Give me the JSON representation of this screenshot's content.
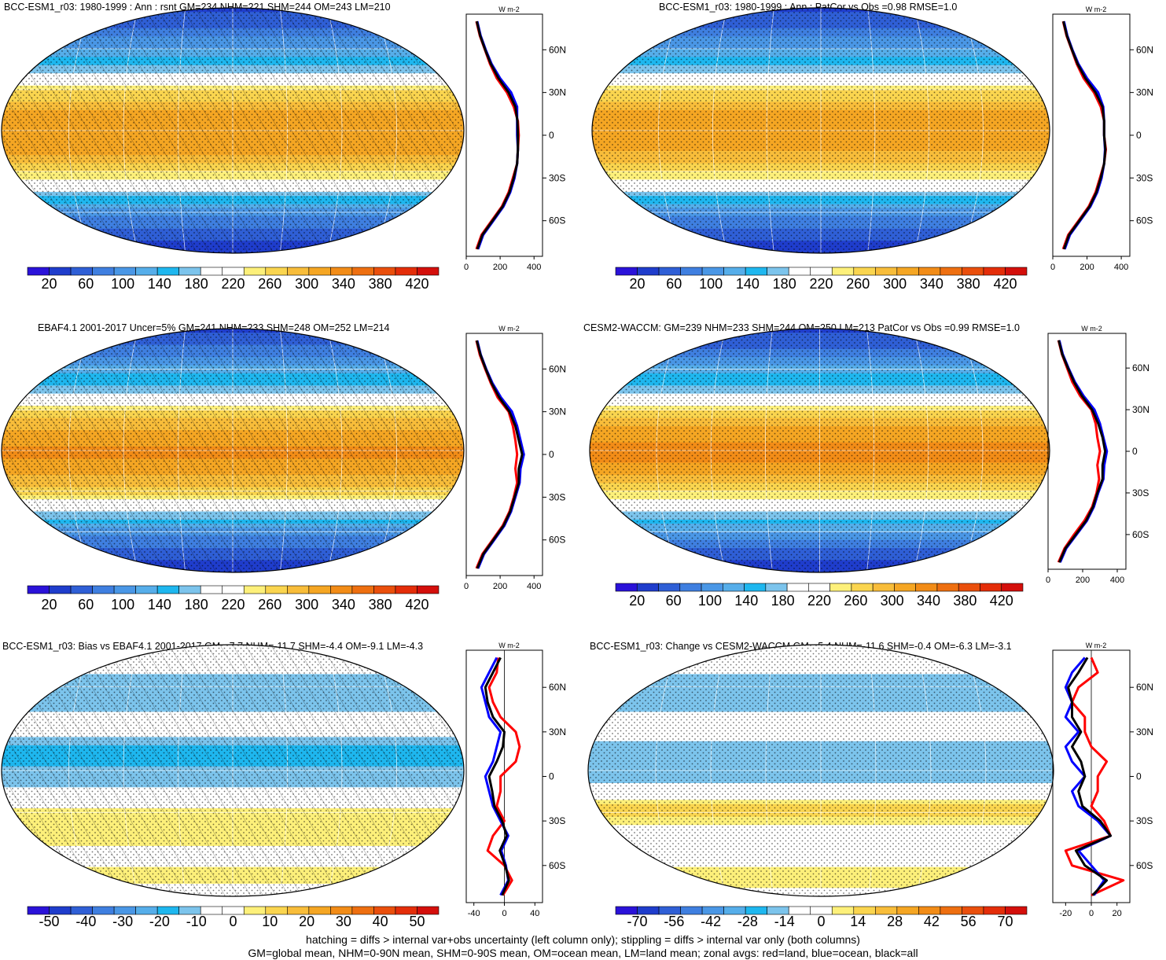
{
  "footer": {
    "line1": "hatching = diffs > internal var+obs uncertainty (left column only); stippling = diffs > internal var only (both columns)",
    "line2": "GM=global mean, NHM=0-90N mean, SHM=0-90S mean, OM=ocean mean, LM=land mean; zonal avgs: red=land, blue=ocean, black=all"
  },
  "palettes": {
    "absolute": [
      "#2a12d9",
      "#1f3dcc",
      "#2f5fd6",
      "#3f7fe0",
      "#4a97e6",
      "#56aeea",
      "#1eb7ef",
      "#7cc4ec",
      "#ffffff",
      "#ffffff",
      "#fdf07a",
      "#fad54f",
      "#f8bd3a",
      "#f5a623",
      "#f28c17",
      "#ee6f10",
      "#ea4f0c",
      "#e42d09",
      "#d40f0b"
    ],
    "difference": [
      "#2a12d9",
      "#1f3dcc",
      "#2f5fd6",
      "#3f7fe0",
      "#4a97e6",
      "#56aeea",
      "#1eb7ef",
      "#7cc4ec",
      "#ffffff",
      "#ffffff",
      "#fdf07a",
      "#fad54f",
      "#f8bd3a",
      "#f5a623",
      "#f28c17",
      "#ee6f10",
      "#ea4f0c",
      "#e42d09",
      "#d40f0b"
    ],
    "zonal_colors": {
      "land": "#ff0000",
      "ocean": "#0000ff",
      "all": "#000000"
    }
  },
  "chart_data": [
    {
      "type": "heatmap",
      "id": "model",
      "title": "BCC-ESM1_r03: 1980-1999 : Ann : rsnt GM=234 NHM=221 SHM=244 OM=243 LM=210",
      "colorbar": {
        "palette": "absolute",
        "labels": [
          "20",
          "60",
          "100",
          "140",
          "180",
          "220",
          "260",
          "300",
          "340",
          "380",
          "420"
        ]
      },
      "overlay": {
        "hatching": true,
        "stippling": true
      },
      "field_profile": {
        "lat": [
          -90,
          -75,
          -60,
          -45,
          -30,
          -15,
          0,
          15,
          30,
          45,
          60,
          75,
          90
        ],
        "values": [
          30,
          60,
          100,
          180,
          260,
          310,
          320,
          300,
          250,
          170,
          120,
          70,
          40
        ]
      },
      "zonal": {
        "units": "W m-2",
        "xlim": [
          0,
          450
        ],
        "xticks": [
          "0",
          "200",
          "400"
        ],
        "lat_ticks": [
          "60N",
          "30N",
          "0",
          "30S",
          "60S"
        ],
        "lat": [
          -80,
          -70,
          -60,
          -50,
          -40,
          -30,
          -20,
          -10,
          0,
          10,
          20,
          30,
          40,
          50,
          60,
          70,
          80
        ],
        "series": [
          {
            "name": "red=land",
            "values": [
              60,
              90,
              150,
              210,
              250,
              275,
              300,
              305,
              310,
              305,
              280,
              240,
              180,
              140,
              110,
              80,
              60
            ]
          },
          {
            "name": "blue=ocean",
            "values": [
              70,
              100,
              160,
              220,
              260,
              285,
              300,
              305,
              300,
              300,
              300,
              265,
              200,
              150,
              115,
              85,
              65
            ]
          },
          {
            "name": "black=all",
            "values": [
              65,
              95,
              155,
              215,
              255,
              280,
              300,
              305,
              305,
              302,
              290,
              250,
              190,
              145,
              112,
              82,
              62
            ]
          }
        ]
      }
    },
    {
      "type": "heatmap",
      "id": "model-vs-obs",
      "title": "BCC-ESM1_r03: 1980-1999 : Ann : PatCor vs Obs =0.98 RMSE=1.0",
      "colorbar": {
        "palette": "absolute",
        "labels": [
          "20",
          "60",
          "100",
          "140",
          "180",
          "220",
          "260",
          "300",
          "340",
          "380",
          "420"
        ]
      },
      "overlay": {
        "hatching": false,
        "stippling": true
      },
      "field_profile": {
        "lat": [
          -90,
          -75,
          -60,
          -45,
          -30,
          -15,
          0,
          15,
          30,
          45,
          60,
          75,
          90
        ],
        "values": [
          30,
          60,
          100,
          185,
          260,
          305,
          315,
          300,
          250,
          170,
          120,
          70,
          40
        ]
      },
      "zonal": {
        "units": "W m-2",
        "xlim": [
          0,
          450
        ],
        "xticks": [
          "0",
          "200",
          "400"
        ],
        "lat_ticks": [
          "60N",
          "30N",
          "0",
          "30S",
          "60S"
        ],
        "lat": [
          -80,
          -70,
          -60,
          -50,
          -40,
          -30,
          -20,
          -10,
          0,
          10,
          20,
          30,
          40,
          50,
          60,
          70,
          80
        ],
        "series": [
          {
            "name": "red=land",
            "values": [
              60,
              90,
              150,
              210,
              250,
              275,
              300,
              310,
              300,
              300,
              280,
              240,
              180,
              140,
              110,
              80,
              60
            ]
          },
          {
            "name": "blue=ocean",
            "values": [
              70,
              100,
              160,
              220,
              260,
              285,
              300,
              305,
              300,
              300,
              295,
              265,
              200,
              150,
              115,
              85,
              65
            ]
          },
          {
            "name": "black=all",
            "values": [
              65,
              95,
              155,
              215,
              255,
              280,
              300,
              307,
              300,
              300,
              290,
              250,
              190,
              145,
              112,
              82,
              62
            ]
          }
        ]
      }
    },
    {
      "type": "heatmap",
      "id": "observations",
      "title": "EBAF4.1 2001-2017 Uncer=5% GM=241 NHM=233 SHM=248 OM=252 LM=214",
      "colorbar": {
        "palette": "absolute",
        "labels": [
          "20",
          "60",
          "100",
          "140",
          "180",
          "220",
          "260",
          "300",
          "340",
          "380",
          "420"
        ]
      },
      "overlay": {
        "hatching": true,
        "stippling": true
      },
      "field_profile": {
        "lat": [
          -90,
          -75,
          -60,
          -45,
          -30,
          -15,
          0,
          15,
          30,
          45,
          60,
          75,
          90
        ],
        "values": [
          30,
          60,
          105,
          190,
          265,
          315,
          330,
          305,
          255,
          175,
          125,
          75,
          40
        ]
      },
      "zonal": {
        "units": "W m-2",
        "xlim": [
          0,
          450
        ],
        "xticks": [
          "0",
          "200",
          "400"
        ],
        "lat_ticks": [
          "60N",
          "30N",
          "0",
          "30S",
          "60S"
        ],
        "lat": [
          -80,
          -70,
          -60,
          -50,
          -40,
          -30,
          -20,
          -10,
          0,
          10,
          20,
          30,
          40,
          50,
          60,
          70,
          80
        ],
        "series": [
          {
            "name": "red=land",
            "values": [
              60,
              95,
              155,
              215,
              255,
              280,
              300,
              290,
              300,
              290,
              275,
              250,
              185,
              145,
              112,
              80,
              60
            ]
          },
          {
            "name": "blue=ocean",
            "values": [
              70,
              105,
              165,
              225,
              265,
              290,
              315,
              320,
              340,
              320,
              300,
              270,
              205,
              155,
              118,
              86,
              65
            ]
          },
          {
            "name": "black=all",
            "values": [
              65,
              100,
              160,
              220,
              260,
              285,
              310,
              310,
              330,
              310,
              290,
              255,
              195,
              150,
              115,
              84,
              62
            ]
          }
        ]
      }
    },
    {
      "type": "heatmap",
      "id": "comparison-model",
      "title": "CESM2-WACCM: GM=239 NHM=233 SHM=244 OM=250 LM=213 PatCor vs Obs =0.99 RMSE=1.0",
      "colorbar": {
        "palette": "absolute",
        "labels": [
          "20",
          "60",
          "100",
          "140",
          "180",
          "220",
          "260",
          "300",
          "340",
          "380",
          "420"
        ]
      },
      "overlay": {
        "hatching": false,
        "stippling": true
      },
      "field_profile": {
        "lat": [
          -90,
          -75,
          -60,
          -45,
          -30,
          -15,
          0,
          15,
          30,
          45,
          60,
          75,
          90
        ],
        "values": [
          30,
          60,
          110,
          185,
          260,
          315,
          335,
          310,
          255,
          175,
          125,
          72,
          40
        ]
      },
      "zonal": {
        "units": "W m-2",
        "xlim": [
          0,
          450
        ],
        "xticks": [
          "0",
          "200",
          "400"
        ],
        "lat_ticks": [
          "60N",
          "30N",
          "0",
          "30S",
          "60S"
        ],
        "lat": [
          -80,
          -70,
          -60,
          -50,
          -40,
          -30,
          -20,
          -10,
          0,
          10,
          20,
          30,
          40,
          50,
          60,
          70,
          80
        ],
        "series": [
          {
            "name": "red=land",
            "values": [
              60,
              95,
              150,
              210,
              255,
              280,
              295,
              285,
              300,
              285,
              275,
              250,
              185,
              140,
              110,
              80,
              60
            ]
          },
          {
            "name": "blue=ocean",
            "values": [
              70,
              105,
              165,
              225,
              265,
              290,
              320,
              325,
              340,
              320,
              300,
              268,
              205,
              155,
              118,
              85,
              65
            ]
          },
          {
            "name": "black=all",
            "values": [
              65,
              100,
              160,
              220,
              260,
              285,
              315,
              315,
              330,
              315,
              290,
              255,
              195,
              150,
              115,
              82,
              62
            ]
          }
        ]
      }
    },
    {
      "type": "heatmap",
      "id": "bias",
      "title": "BCC-ESM1_r03: Bias vs EBAF4.1 2001-2017 GM=-7.7 NHM=-11.7 SHM=-4.4 OM=-9.1 LM=-4.3",
      "colorbar": {
        "palette": "difference",
        "labels": [
          "-50",
          "-40",
          "-30",
          "-20",
          "-10",
          "0",
          "10",
          "20",
          "30",
          "40",
          "50"
        ]
      },
      "overlay": {
        "hatching": true,
        "stippling": true
      },
      "field_profile": {
        "lat": [
          -90,
          -75,
          -60,
          -45,
          -30,
          -15,
          0,
          15,
          30,
          45,
          60,
          75,
          90
        ],
        "values": [
          0,
          5,
          -2,
          8,
          6,
          -8,
          -14,
          -18,
          -4,
          -10,
          -12,
          -6,
          0
        ]
      },
      "zonal": {
        "units": "W m-2",
        "xlim": [
          -50,
          50
        ],
        "xticks": [
          "-40",
          "0",
          "40"
        ],
        "lat_ticks": [
          "60N",
          "30N",
          "0",
          "30S",
          "60S"
        ],
        "lat": [
          -80,
          -70,
          -60,
          -50,
          -40,
          -30,
          -20,
          -10,
          0,
          10,
          20,
          30,
          40,
          50,
          60,
          70,
          80
        ],
        "series": [
          {
            "name": "red=land",
            "values": [
              -2,
              10,
              0,
              -22,
              -15,
              0,
              -10,
              -5,
              -5,
              15,
              20,
              15,
              -5,
              -15,
              -20,
              -10,
              -8
            ]
          },
          {
            "name": "blue=ocean",
            "values": [
              -5,
              5,
              2,
              -4,
              5,
              -5,
              -15,
              -20,
              -25,
              -15,
              -10,
              -5,
              -20,
              -25,
              -30,
              -20,
              -10
            ]
          },
          {
            "name": "black=all",
            "values": [
              -3,
              6,
              1,
              -6,
              3,
              -3,
              -13,
              -16,
              -20,
              -10,
              -2,
              0,
              -15,
              -22,
              -25,
              -15,
              -5
            ]
          }
        ]
      }
    },
    {
      "type": "heatmap",
      "id": "change",
      "title": "BCC-ESM1_r03: Change vs CESM2-WACCM GM=-5.4 NHM=-11.6 SHM=-0.4 OM=-6.3 LM=-3.1",
      "colorbar": {
        "palette": "difference",
        "labels": [
          "-70",
          "-56",
          "-42",
          "-28",
          "-14",
          "0",
          "14",
          "28",
          "42",
          "56",
          "70"
        ]
      },
      "overlay": {
        "hatching": false,
        "stippling": true
      },
      "field_profile": {
        "lat": [
          -90,
          -75,
          -60,
          -45,
          -30,
          -15,
          0,
          15,
          30,
          45,
          60,
          75,
          90
        ],
        "values": [
          0,
          12,
          -5,
          -8,
          20,
          -6,
          -20,
          -15,
          -6,
          -14,
          -16,
          -10,
          0
        ]
      },
      "zonal": {
        "units": "W m-2",
        "xlim": [
          -30,
          30
        ],
        "xticks": [
          "-20",
          "0",
          "20"
        ],
        "lat_ticks": [
          "60N",
          "30N",
          "0",
          "30S",
          "60S"
        ],
        "lat": [
          -80,
          -70,
          -60,
          -50,
          -40,
          -30,
          -20,
          -10,
          0,
          10,
          20,
          30,
          40,
          50,
          60,
          70,
          80
        ],
        "series": [
          {
            "name": "red=land",
            "values": [
              0,
              25,
              -15,
              -20,
              15,
              10,
              0,
              5,
              5,
              12,
              0,
              -5,
              -5,
              -15,
              -10,
              5,
              0
            ]
          },
          {
            "name": "blue=ocean",
            "values": [
              2,
              10,
              0,
              -10,
              15,
              5,
              -10,
              -15,
              -5,
              -15,
              -20,
              -10,
              -20,
              -15,
              -20,
              -15,
              -5
            ]
          },
          {
            "name": "black=all",
            "values": [
              1,
              12,
              -5,
              -12,
              15,
              7,
              -7,
              -10,
              -5,
              -8,
              -15,
              -8,
              -15,
              -15,
              -18,
              -10,
              -3
            ]
          }
        ]
      }
    }
  ]
}
